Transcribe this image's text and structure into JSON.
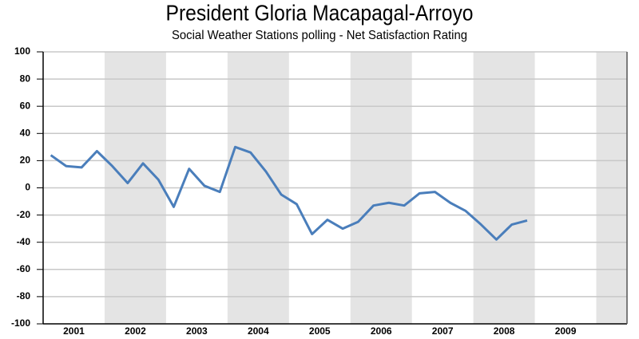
{
  "chart_data": {
    "type": "line",
    "title": "President Gloria Macapagal-Arroyo",
    "subtitle": "Social Weather Stations polling - Net Satisfaction Rating",
    "x": [
      2001.125,
      2001.375,
      2001.625,
      2001.875,
      2002.125,
      2002.375,
      2002.625,
      2002.875,
      2003.125,
      2003.375,
      2003.625,
      2003.875,
      2004.125,
      2004.375,
      2004.625,
      2004.875,
      2005.125,
      2005.375,
      2005.625,
      2005.875,
      2006.125,
      2006.375,
      2006.625,
      2006.875,
      2007.125,
      2007.375,
      2007.625,
      2007.875,
      2008.125,
      2008.375,
      2008.625,
      2008.875
    ],
    "series": [
      {
        "name": "Net Satisfaction",
        "color": "#4a7ebb",
        "values": [
          24,
          16,
          15,
          27,
          16,
          3.5,
          18,
          6,
          -14,
          14,
          1.5,
          -3,
          30,
          26,
          12,
          -5,
          -12,
          -34,
          -23.5,
          -30,
          -25,
          -13,
          -11,
          -13,
          -4,
          -3,
          -11,
          -17,
          -27,
          -38,
          -27,
          -24
        ]
      }
    ],
    "xlim": [
      2001,
      2010.5
    ],
    "xticks": [
      {
        "value": 2001.5,
        "label": "2001"
      },
      {
        "value": 2002.5,
        "label": "2002"
      },
      {
        "value": 2003.5,
        "label": "2003"
      },
      {
        "value": 2004.5,
        "label": "2004"
      },
      {
        "value": 2005.5,
        "label": "2005"
      },
      {
        "value": 2006.5,
        "label": "2006"
      },
      {
        "value": 2007.5,
        "label": "2007"
      },
      {
        "value": 2008.5,
        "label": "2008"
      },
      {
        "value": 2009.5,
        "label": "2009"
      }
    ],
    "ylim": [
      -100,
      100
    ],
    "yticks": [
      -100,
      -80,
      -60,
      -40,
      -20,
      0,
      20,
      40,
      60,
      80,
      100
    ],
    "grid": true,
    "band_color": "#e4e4e4"
  }
}
